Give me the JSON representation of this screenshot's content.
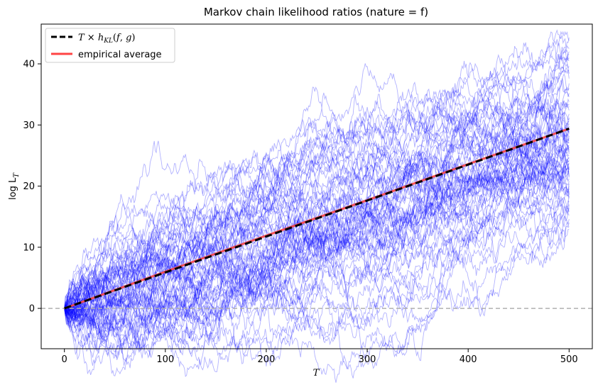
{
  "chart_data": {
    "type": "line",
    "title": "Markov chain likelihood ratios (nature = f)",
    "xlabel": "T",
    "ylabel_base": "log L",
    "ylabel_sub": "T",
    "xlim": [
      -23,
      523
    ],
    "ylim": [
      -6.6,
      46.5
    ],
    "xticks": [
      0,
      100,
      200,
      300,
      400,
      500
    ],
    "yticks": [
      0,
      10,
      20,
      30,
      40
    ],
    "grid": false,
    "legend_position": "top-left",
    "reference_line": {
      "y": 0,
      "color": "#b0b0b0",
      "style": "dashed"
    },
    "simulated_paths": {
      "count": 70,
      "T_max": 500,
      "color": "#0000ff",
      "opacity": 0.3,
      "final_values": [
        44.3,
        43.8,
        42.5,
        42.0,
        41.6,
        41.0,
        40.5,
        39.6,
        39.0,
        38.4,
        37.6,
        36.8,
        36.0,
        35.2,
        34.6,
        33.8,
        33.0,
        32.4,
        31.8,
        31.2,
        30.6,
        30.2,
        29.8,
        29.4,
        29.0,
        28.6,
        28.2,
        27.8,
        27.4,
        27.0,
        26.6,
        26.2,
        25.9,
        25.6,
        25.3,
        25.0,
        24.7,
        24.4,
        24.1,
        23.8,
        23.5,
        23.2,
        22.9,
        22.6,
        22.3,
        22.0,
        21.6,
        21.2,
        20.8,
        20.4,
        20.0,
        19.6,
        19.2,
        18.6,
        18.0,
        17.4,
        17.0,
        16.4,
        15.8,
        15.2,
        14.6,
        14.0,
        13.4,
        12.9,
        33.4,
        31.0,
        27.2,
        24.2,
        21.4,
        18.2
      ]
    },
    "series": [
      {
        "name": "T×h_KL(f,g)",
        "x": [
          0,
          500
        ],
        "y": [
          0,
          29.4
        ],
        "color": "#000000",
        "style": "dashed"
      },
      {
        "name": "empirical average",
        "x": [
          0,
          100,
          200,
          300,
          400,
          500
        ],
        "y": [
          0,
          6.0,
          11.9,
          17.7,
          23.6,
          29.4
        ],
        "color": "#ff4444",
        "style": "solid"
      }
    ]
  }
}
